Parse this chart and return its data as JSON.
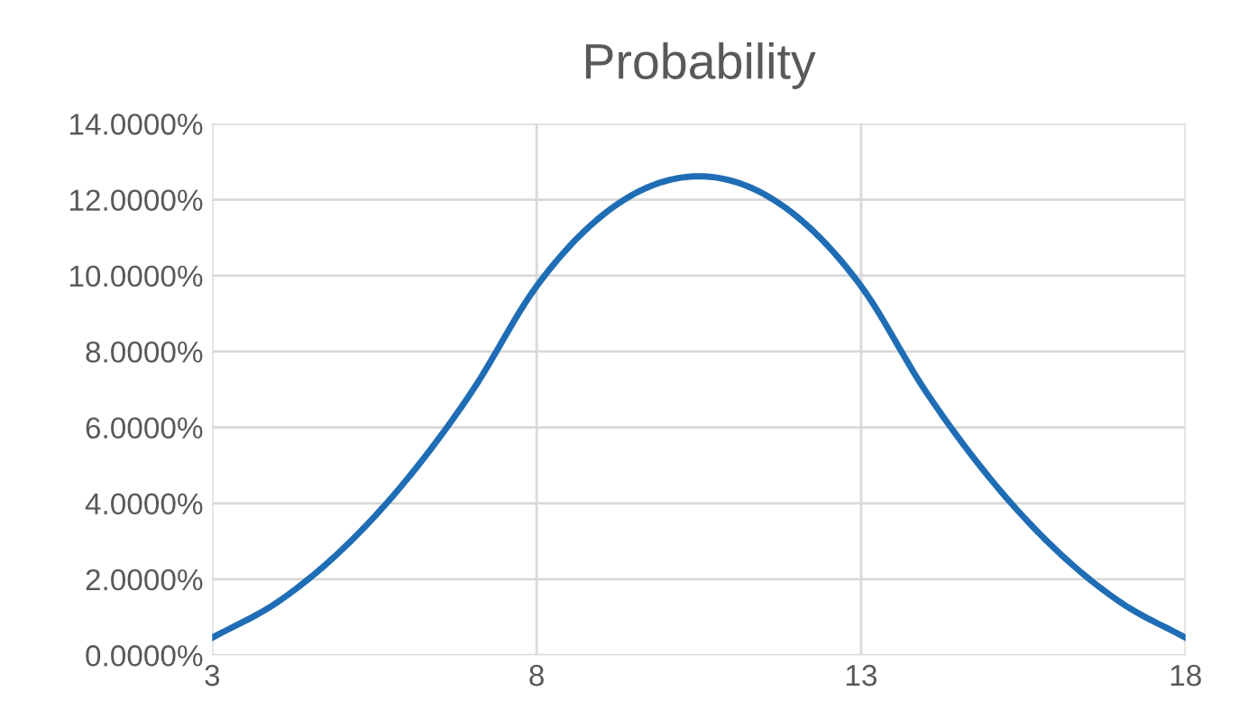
{
  "chart_data": {
    "type": "line",
    "title": "Probability",
    "x": [
      3,
      4,
      5,
      6,
      7,
      8,
      9,
      10,
      11,
      12,
      13,
      14,
      15,
      16,
      17,
      18
    ],
    "series": [
      {
        "color": "#1f6db5",
        "values": [
          0.46,
          1.39,
          2.78,
          4.63,
          6.94,
          9.72,
          11.57,
          12.5,
          12.5,
          11.57,
          9.72,
          6.94,
          4.63,
          2.78,
          1.39,
          0.46
        ]
      }
    ],
    "xlim": [
      3,
      18
    ],
    "xticks": [
      3,
      8,
      13,
      18
    ],
    "ylim": [
      0,
      14
    ],
    "yticks": [
      {
        "value": 0,
        "label": "0.0000%"
      },
      {
        "value": 2,
        "label": "2.0000%"
      },
      {
        "value": 4,
        "label": "4.0000%"
      },
      {
        "value": 6,
        "label": "6.0000%"
      },
      {
        "value": 8,
        "label": "8.0000%"
      },
      {
        "value": 10,
        "label": "10.0000%"
      },
      {
        "value": 12,
        "label": "12.0000%"
      },
      {
        "value": 14,
        "label": "14.0000%"
      }
    ],
    "grid": true,
    "marker": "none",
    "line_style": "solid"
  }
}
